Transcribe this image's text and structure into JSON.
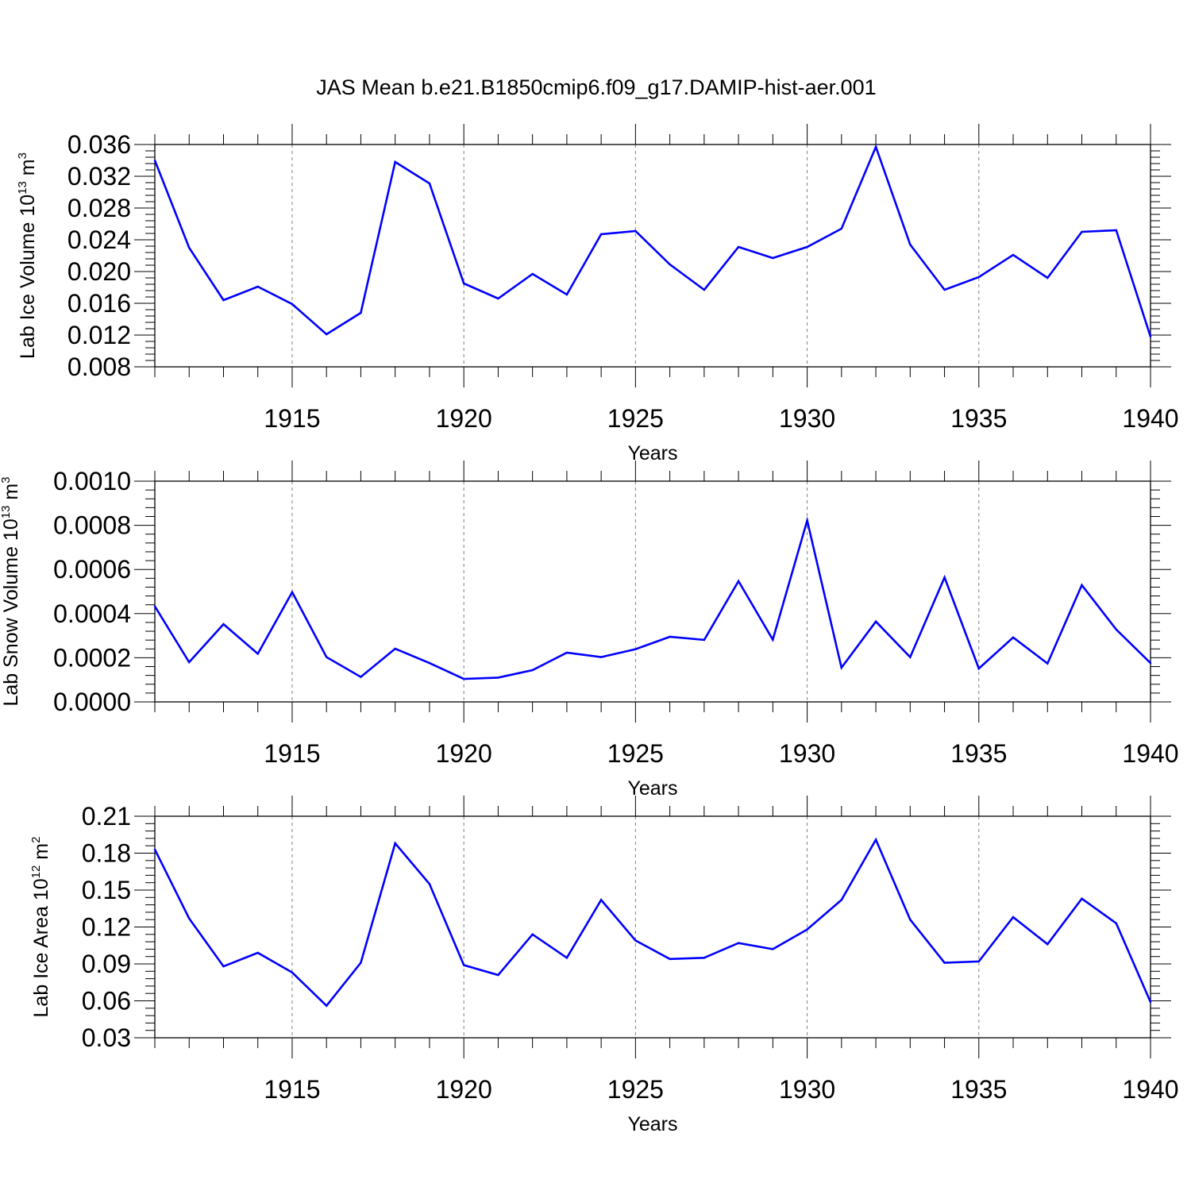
{
  "title": "JAS Mean b.e21.B1850cmip6.f09_g17.DAMIP-hist-aer.001",
  "colors": {
    "series": "#0000ff",
    "axis": "#000000",
    "grid": "#808080",
    "background": "#ffffff"
  },
  "chart_data": [
    {
      "type": "line",
      "ylabel": {
        "text": "Lab Ice Volume 10",
        "exp": "13",
        "unit": " m",
        "unit_exp": "3"
      },
      "xlabel": "Years",
      "xlim": [
        1911,
        1940
      ],
      "ylim": [
        0.008,
        0.036
      ],
      "yticks": [
        "0.008",
        "0.012",
        "0.016",
        "0.020",
        "0.024",
        "0.028",
        "0.032",
        "0.036"
      ],
      "xticks": [
        "1915",
        "1920",
        "1925",
        "1930",
        "1935",
        "1940"
      ],
      "grid": "vertical dashed at major x ticks",
      "x": [
        1911,
        1912,
        1913,
        1914,
        1915,
        1916,
        1917,
        1918,
        1919,
        1920,
        1921,
        1922,
        1923,
        1924,
        1925,
        1926,
        1927,
        1928,
        1929,
        1930,
        1931,
        1932,
        1933,
        1934,
        1935,
        1936,
        1937,
        1938,
        1939,
        1940
      ],
      "values": [
        0.034,
        0.023,
        0.0164,
        0.0181,
        0.0159,
        0.0121,
        0.0148,
        0.0338,
        0.0311,
        0.0185,
        0.0166,
        0.0197,
        0.0171,
        0.0247,
        0.0251,
        0.0209,
        0.0177,
        0.0231,
        0.0217,
        0.0231,
        0.0254,
        0.0357,
        0.0234,
        0.0177,
        0.0193,
        0.0221,
        0.0192,
        0.025,
        0.0252,
        0.0118
      ]
    },
    {
      "type": "line",
      "ylabel": {
        "text": "Lab Snow Volume 10",
        "exp": "13",
        "unit": " m",
        "unit_exp": "3"
      },
      "xlabel": "Years",
      "xlim": [
        1911,
        1940
      ],
      "ylim": [
        0.0,
        0.001
      ],
      "yticks": [
        "0.0000",
        "0.0002",
        "0.0004",
        "0.0006",
        "0.0008",
        "0.0010"
      ],
      "xticks": [
        "1915",
        "1920",
        "1925",
        "1930",
        "1935",
        "1940"
      ],
      "grid": "vertical dashed at major x ticks",
      "x": [
        1911,
        1912,
        1913,
        1914,
        1915,
        1916,
        1917,
        1918,
        1919,
        1920,
        1921,
        1922,
        1923,
        1924,
        1925,
        1926,
        1927,
        1928,
        1929,
        1930,
        1931,
        1932,
        1933,
        1934,
        1935,
        1936,
        1937,
        1938,
        1939,
        1940
      ],
      "values": [
        0.000433,
        0.00018,
        0.000352,
        0.000218,
        0.000497,
        0.000203,
        0.000113,
        0.000241,
        0.000176,
        0.000104,
        0.00011,
        0.000144,
        0.000223,
        0.000203,
        0.000239,
        0.000295,
        0.000281,
        0.000547,
        0.000282,
        0.000822,
        0.000155,
        0.000364,
        0.000203,
        0.000564,
        0.000151,
        0.000292,
        0.000174,
        0.000529,
        0.000328,
        0.000176
      ]
    },
    {
      "type": "line",
      "ylabel": {
        "text": "Lab Ice Area 10",
        "exp": "12",
        "unit": " m",
        "unit_exp": "2"
      },
      "xlabel": "Years",
      "xlim": [
        1911,
        1940
      ],
      "ylim": [
        0.03,
        0.21
      ],
      "yticks": [
        "0.03",
        "0.06",
        "0.09",
        "0.12",
        "0.15",
        "0.18",
        "0.21"
      ],
      "xticks": [
        "1915",
        "1920",
        "1925",
        "1930",
        "1935",
        "1940"
      ],
      "grid": "vertical dashed at major x ticks",
      "x": [
        1911,
        1912,
        1913,
        1914,
        1915,
        1916,
        1917,
        1918,
        1919,
        1920,
        1921,
        1922,
        1923,
        1924,
        1925,
        1926,
        1927,
        1928,
        1929,
        1930,
        1931,
        1932,
        1933,
        1934,
        1935,
        1936,
        1937,
        1938,
        1939,
        1940
      ],
      "values": [
        0.183,
        0.127,
        0.088,
        0.099,
        0.083,
        0.056,
        0.091,
        0.188,
        0.155,
        0.089,
        0.081,
        0.114,
        0.095,
        0.142,
        0.109,
        0.094,
        0.095,
        0.107,
        0.102,
        0.118,
        0.142,
        0.191,
        0.126,
        0.091,
        0.092,
        0.128,
        0.106,
        0.143,
        0.123,
        0.059
      ]
    }
  ]
}
